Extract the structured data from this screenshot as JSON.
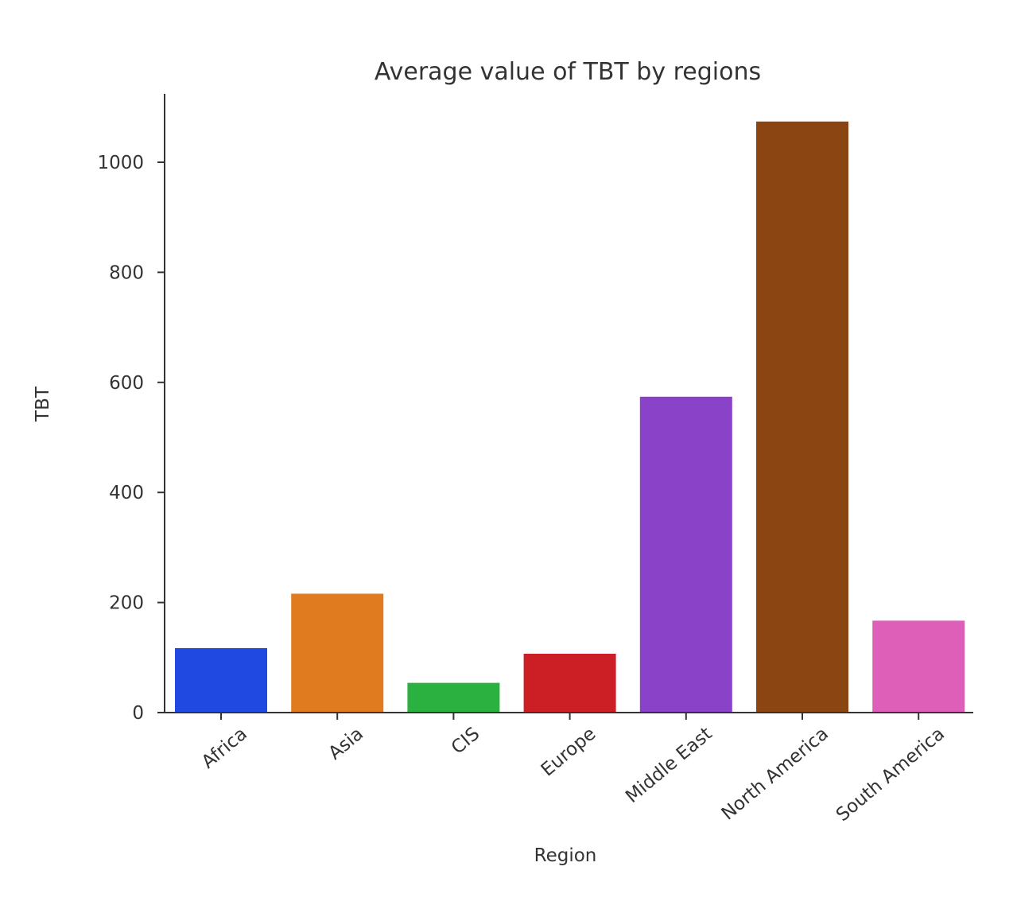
{
  "chart_data": {
    "type": "bar",
    "title": "Average value of TBT by regions",
    "xlabel": "Region",
    "ylabel": "TBT",
    "categories": [
      "Africa",
      "Asia",
      "CIS",
      "Europe",
      "Middle East",
      "North America",
      "South America"
    ],
    "values": [
      117,
      216,
      54,
      107,
      574,
      1074,
      167
    ],
    "colors": [
      "#1f49e0",
      "#e07b20",
      "#2bb140",
      "#cc1e25",
      "#8a42c9",
      "#8b4513",
      "#dd5fb8"
    ],
    "yticks": [
      0,
      200,
      400,
      600,
      800,
      1000
    ],
    "ylim": [
      0,
      1125
    ],
    "grid": false,
    "legend": "none"
  }
}
